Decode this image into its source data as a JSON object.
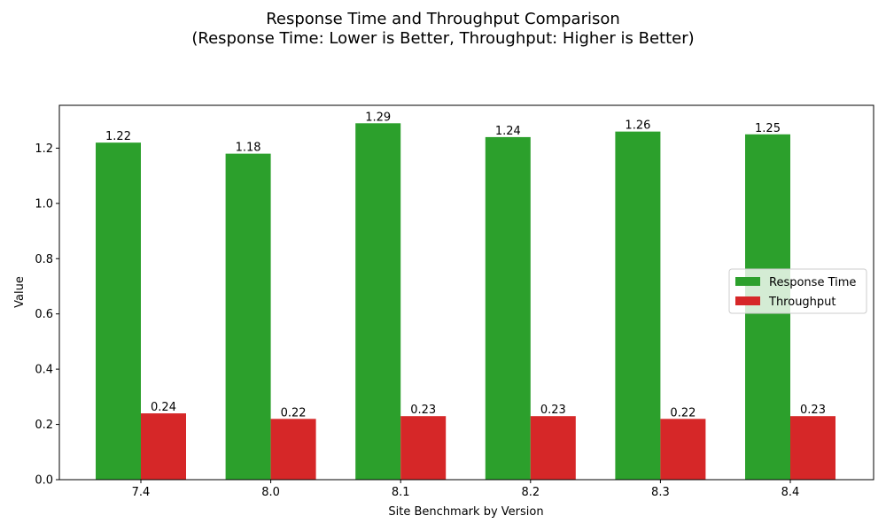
{
  "chart_data": {
    "type": "bar",
    "title": "Response Time and Throughput Comparison",
    "subtitle": "(Response Time: Lower is Better, Throughput: Higher is Better)",
    "xlabel": "Site Benchmark by Version",
    "ylabel": "Value",
    "categories": [
      "7.4",
      "8.0",
      "8.1",
      "8.2",
      "8.3",
      "8.4"
    ],
    "series": [
      {
        "name": "Response Time",
        "color": "#2ca02c",
        "values": [
          1.22,
          1.18,
          1.29,
          1.24,
          1.26,
          1.25
        ],
        "labels": [
          "1.22",
          "1.18",
          "1.29",
          "1.24",
          "1.26",
          "1.25"
        ]
      },
      {
        "name": "Throughput",
        "color": "#d62728",
        "values": [
          0.24,
          0.22,
          0.23,
          0.23,
          0.22,
          0.23
        ],
        "labels": [
          "0.24",
          "0.22",
          "0.23",
          "0.23",
          "0.22",
          "0.23"
        ]
      }
    ],
    "ylim": [
      0,
      1.355
    ],
    "yticks": [
      0.0,
      0.2,
      0.4,
      0.6,
      0.8,
      1.0,
      1.2
    ],
    "ytick_labels": [
      "0.0",
      "0.2",
      "0.4",
      "0.6",
      "0.8",
      "1.0",
      "1.2"
    ],
    "grid": false,
    "legend_position": "center-right"
  }
}
